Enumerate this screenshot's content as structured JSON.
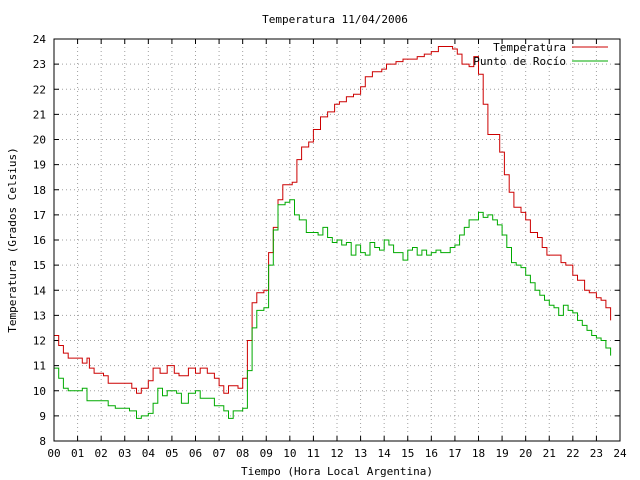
{
  "chart_data": {
    "type": "line",
    "title": "Temperatura 11/04/2006",
    "xlabel": "Tiempo (Hora Local Argentina)",
    "ylabel": "Temperatura (Grados Celsius)",
    "xlim": [
      0,
      24
    ],
    "ylim": [
      8,
      24
    ],
    "x_ticks": [
      "00",
      "01",
      "02",
      "03",
      "04",
      "05",
      "06",
      "07",
      "08",
      "09",
      "10",
      "11",
      "12",
      "13",
      "14",
      "15",
      "16",
      "17",
      "18",
      "19",
      "20",
      "21",
      "22",
      "23",
      "24"
    ],
    "y_ticks": [
      8,
      9,
      10,
      11,
      12,
      13,
      14,
      15,
      16,
      17,
      18,
      19,
      20,
      21,
      22,
      23,
      24
    ],
    "grid": true,
    "legend_position": "top-right",
    "series": [
      {
        "name": "Temperatura",
        "color": "#cc0000",
        "points": [
          [
            0.0,
            12.2
          ],
          [
            0.2,
            11.8
          ],
          [
            0.4,
            11.5
          ],
          [
            0.6,
            11.3
          ],
          [
            1.0,
            11.3
          ],
          [
            1.2,
            11.1
          ],
          [
            1.4,
            11.3
          ],
          [
            1.5,
            10.9
          ],
          [
            1.7,
            10.7
          ],
          [
            2.1,
            10.6
          ],
          [
            2.3,
            10.3
          ],
          [
            2.7,
            10.3
          ],
          [
            3.1,
            10.3
          ],
          [
            3.3,
            10.1
          ],
          [
            3.5,
            9.9
          ],
          [
            3.7,
            10.1
          ],
          [
            4.0,
            10.4
          ],
          [
            4.2,
            10.9
          ],
          [
            4.5,
            10.7
          ],
          [
            4.8,
            11.0
          ],
          [
            5.1,
            10.7
          ],
          [
            5.3,
            10.6
          ],
          [
            5.7,
            10.9
          ],
          [
            6.0,
            10.7
          ],
          [
            6.2,
            10.9
          ],
          [
            6.5,
            10.7
          ],
          [
            6.8,
            10.5
          ],
          [
            7.0,
            10.2
          ],
          [
            7.2,
            9.9
          ],
          [
            7.4,
            10.2
          ],
          [
            7.8,
            10.1
          ],
          [
            8.0,
            10.5
          ],
          [
            8.2,
            12.0
          ],
          [
            8.4,
            13.5
          ],
          [
            8.6,
            13.9
          ],
          [
            8.9,
            14.0
          ],
          [
            9.1,
            15.5
          ],
          [
            9.3,
            16.5
          ],
          [
            9.5,
            17.6
          ],
          [
            9.7,
            18.2
          ],
          [
            10.1,
            18.3
          ],
          [
            10.3,
            19.2
          ],
          [
            10.5,
            19.7
          ],
          [
            10.8,
            19.9
          ],
          [
            11.0,
            20.4
          ],
          [
            11.3,
            20.9
          ],
          [
            11.6,
            21.1
          ],
          [
            11.9,
            21.4
          ],
          [
            12.1,
            21.5
          ],
          [
            12.4,
            21.7
          ],
          [
            12.7,
            21.8
          ],
          [
            13.0,
            22.1
          ],
          [
            13.2,
            22.5
          ],
          [
            13.5,
            22.7
          ],
          [
            13.9,
            22.8
          ],
          [
            14.1,
            23.0
          ],
          [
            14.5,
            23.1
          ],
          [
            14.8,
            23.2
          ],
          [
            15.1,
            23.2
          ],
          [
            15.4,
            23.3
          ],
          [
            15.7,
            23.4
          ],
          [
            16.0,
            23.5
          ],
          [
            16.3,
            23.7
          ],
          [
            16.6,
            23.7
          ],
          [
            16.9,
            23.6
          ],
          [
            17.1,
            23.4
          ],
          [
            17.3,
            23.0
          ],
          [
            17.6,
            22.9
          ],
          [
            17.8,
            23.3
          ],
          [
            18.0,
            22.6
          ],
          [
            18.2,
            21.4
          ],
          [
            18.4,
            20.2
          ],
          [
            18.7,
            20.2
          ],
          [
            18.9,
            19.5
          ],
          [
            19.1,
            18.6
          ],
          [
            19.3,
            17.9
          ],
          [
            19.5,
            17.3
          ],
          [
            19.8,
            17.1
          ],
          [
            20.0,
            16.8
          ],
          [
            20.2,
            16.3
          ],
          [
            20.5,
            16.1
          ],
          [
            20.7,
            15.7
          ],
          [
            20.9,
            15.4
          ],
          [
            21.3,
            15.4
          ],
          [
            21.5,
            15.1
          ],
          [
            21.7,
            15.0
          ],
          [
            22.0,
            14.6
          ],
          [
            22.2,
            14.4
          ],
          [
            22.5,
            14.0
          ],
          [
            22.7,
            13.9
          ],
          [
            23.0,
            13.7
          ],
          [
            23.2,
            13.6
          ],
          [
            23.4,
            13.3
          ],
          [
            23.6,
            12.8
          ]
        ]
      },
      {
        "name": "Punto de Rocío",
        "color": "#00aa00",
        "points": [
          [
            0.0,
            10.9
          ],
          [
            0.2,
            10.5
          ],
          [
            0.4,
            10.1
          ],
          [
            0.6,
            10.0
          ],
          [
            1.0,
            10.0
          ],
          [
            1.2,
            10.1
          ],
          [
            1.4,
            9.6
          ],
          [
            1.6,
            9.6
          ],
          [
            2.0,
            9.6
          ],
          [
            2.3,
            9.4
          ],
          [
            2.6,
            9.3
          ],
          [
            3.0,
            9.3
          ],
          [
            3.2,
            9.2
          ],
          [
            3.5,
            8.9
          ],
          [
            3.7,
            9.0
          ],
          [
            4.0,
            9.1
          ],
          [
            4.2,
            9.5
          ],
          [
            4.4,
            10.1
          ],
          [
            4.6,
            9.8
          ],
          [
            4.8,
            10.0
          ],
          [
            5.0,
            10.0
          ],
          [
            5.2,
            9.9
          ],
          [
            5.4,
            9.5
          ],
          [
            5.7,
            9.9
          ],
          [
            6.0,
            10.0
          ],
          [
            6.2,
            9.7
          ],
          [
            6.5,
            9.7
          ],
          [
            6.8,
            9.4
          ],
          [
            7.0,
            9.4
          ],
          [
            7.2,
            9.2
          ],
          [
            7.4,
            8.9
          ],
          [
            7.6,
            9.2
          ],
          [
            7.9,
            9.2
          ],
          [
            8.0,
            9.3
          ],
          [
            8.2,
            10.8
          ],
          [
            8.4,
            12.5
          ],
          [
            8.6,
            13.2
          ],
          [
            8.9,
            13.3
          ],
          [
            9.1,
            15.0
          ],
          [
            9.3,
            16.4
          ],
          [
            9.5,
            17.4
          ],
          [
            9.8,
            17.5
          ],
          [
            10.0,
            17.6
          ],
          [
            10.2,
            17.0
          ],
          [
            10.4,
            16.8
          ],
          [
            10.7,
            16.3
          ],
          [
            11.0,
            16.3
          ],
          [
            11.2,
            16.2
          ],
          [
            11.4,
            16.5
          ],
          [
            11.6,
            16.1
          ],
          [
            11.8,
            15.9
          ],
          [
            12.0,
            16.0
          ],
          [
            12.2,
            15.8
          ],
          [
            12.4,
            15.9
          ],
          [
            12.6,
            15.4
          ],
          [
            12.8,
            15.8
          ],
          [
            13.0,
            15.5
          ],
          [
            13.2,
            15.4
          ],
          [
            13.4,
            15.9
          ],
          [
            13.6,
            15.7
          ],
          [
            13.8,
            15.6
          ],
          [
            14.0,
            16.0
          ],
          [
            14.2,
            15.8
          ],
          [
            14.4,
            15.5
          ],
          [
            14.6,
            15.5
          ],
          [
            14.8,
            15.2
          ],
          [
            15.0,
            15.6
          ],
          [
            15.2,
            15.7
          ],
          [
            15.4,
            15.4
          ],
          [
            15.6,
            15.6
          ],
          [
            15.8,
            15.4
          ],
          [
            16.0,
            15.5
          ],
          [
            16.2,
            15.6
          ],
          [
            16.4,
            15.5
          ],
          [
            16.6,
            15.5
          ],
          [
            16.8,
            15.7
          ],
          [
            17.0,
            15.8
          ],
          [
            17.2,
            16.2
          ],
          [
            17.4,
            16.5
          ],
          [
            17.6,
            16.8
          ],
          [
            17.8,
            16.8
          ],
          [
            18.0,
            17.1
          ],
          [
            18.2,
            16.9
          ],
          [
            18.4,
            17.0
          ],
          [
            18.6,
            16.8
          ],
          [
            18.8,
            16.6
          ],
          [
            19.0,
            16.2
          ],
          [
            19.2,
            15.7
          ],
          [
            19.4,
            15.1
          ],
          [
            19.6,
            15.0
          ],
          [
            19.8,
            14.9
          ],
          [
            20.0,
            14.6
          ],
          [
            20.2,
            14.3
          ],
          [
            20.4,
            14.0
          ],
          [
            20.6,
            13.8
          ],
          [
            20.8,
            13.6
          ],
          [
            21.0,
            13.4
          ],
          [
            21.2,
            13.3
          ],
          [
            21.4,
            13.0
          ],
          [
            21.6,
            13.4
          ],
          [
            21.8,
            13.2
          ],
          [
            22.0,
            13.1
          ],
          [
            22.2,
            12.8
          ],
          [
            22.4,
            12.6
          ],
          [
            22.6,
            12.4
          ],
          [
            22.8,
            12.2
          ],
          [
            23.0,
            12.1
          ],
          [
            23.2,
            12.0
          ],
          [
            23.4,
            11.7
          ],
          [
            23.6,
            11.4
          ]
        ]
      }
    ]
  }
}
